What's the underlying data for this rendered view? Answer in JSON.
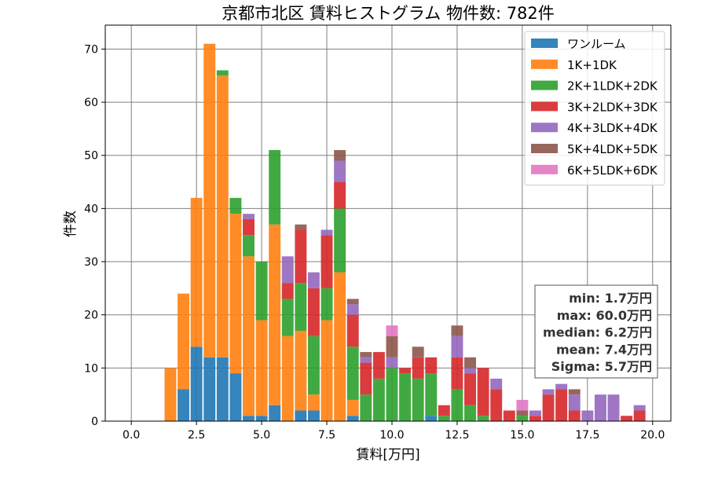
{
  "chart_data": {
    "type": "bar",
    "stacked": true,
    "title": "京都市北区 賃料ヒストグラム 物件数: 782件",
    "xlabel": "賃料[万円]",
    "ylabel": "件数",
    "xlim": [
      -1.0,
      20.7
    ],
    "ylim": [
      0,
      74.5
    ],
    "xticks": [
      0.0,
      2.5,
      5.0,
      7.5,
      10.0,
      12.5,
      15.0,
      17.5,
      20.0
    ],
    "xtick_labels": [
      "0.0",
      "2.5",
      "5.0",
      "7.5",
      "10.0",
      "12.5",
      "15.0",
      "17.5",
      "20.0"
    ],
    "yticks": [
      0,
      10,
      20,
      30,
      40,
      50,
      60,
      70
    ],
    "ytick_labels": [
      "0",
      "10",
      "20",
      "30",
      "40",
      "50",
      "60",
      "70"
    ],
    "grid": true,
    "legend_position": "top-right",
    "bin_width": 0.5,
    "x": [
      1.5,
      2.0,
      2.5,
      3.0,
      3.5,
      4.0,
      4.5,
      5.0,
      5.5,
      6.0,
      6.5,
      7.0,
      7.5,
      8.0,
      8.5,
      9.0,
      9.5,
      10.0,
      10.5,
      11.0,
      11.5,
      12.0,
      12.5,
      13.0,
      13.5,
      14.0,
      14.5,
      15.0,
      15.5,
      16.0,
      16.5,
      17.0,
      17.5,
      18.0,
      18.5,
      19.0,
      19.5
    ],
    "series": [
      {
        "name": "ワンルーム",
        "color": "#1f77b4",
        "values": [
          0,
          6,
          14,
          12,
          12,
          9,
          1,
          1,
          3,
          0,
          2,
          2,
          0,
          0,
          1,
          0,
          0,
          0,
          0,
          0,
          1,
          0,
          0,
          0,
          0,
          0,
          0,
          0,
          0,
          0,
          0,
          0,
          0,
          0,
          0,
          0,
          0
        ]
      },
      {
        "name": "1K+1DK",
        "color": "#ff7f0e",
        "values": [
          10,
          18,
          28,
          59,
          53,
          30,
          30,
          18,
          34,
          16,
          15,
          3,
          19,
          28,
          3,
          0,
          0,
          0,
          0,
          0,
          0,
          0,
          0,
          0,
          0,
          0,
          0,
          0,
          0,
          0,
          0,
          0,
          0,
          0,
          0,
          0,
          0
        ]
      },
      {
        "name": "2K+1LDK+2DK",
        "color": "#2ca02c",
        "values": [
          0,
          0,
          0,
          0,
          1,
          3,
          4,
          11,
          14,
          7,
          9,
          11,
          6,
          12,
          10,
          5,
          8,
          10,
          9,
          8,
          8,
          1,
          6,
          3,
          1,
          0,
          0,
          1,
          0,
          0,
          0,
          0,
          0,
          0,
          0,
          0,
          0
        ]
      },
      {
        "name": "3K+2LDK+3DK",
        "color": "#d62728",
        "values": [
          0,
          0,
          0,
          0,
          0,
          0,
          3,
          0,
          0,
          3,
          10,
          9,
          10,
          5,
          6,
          6,
          5,
          0,
          1,
          4,
          3,
          2,
          6,
          6,
          9,
          6,
          2,
          0,
          1,
          5,
          6,
          2,
          0,
          0,
          0,
          1,
          2
        ]
      },
      {
        "name": "4K+3LDK+4DK",
        "color": "#9467bd",
        "values": [
          0,
          0,
          0,
          0,
          0,
          0,
          1,
          0,
          0,
          5,
          0,
          3,
          1,
          4,
          2,
          1,
          0,
          2,
          0,
          0,
          0,
          0,
          4,
          1,
          0,
          2,
          0,
          0,
          1,
          1,
          1,
          3,
          2,
          5,
          5,
          0,
          1
        ]
      },
      {
        "name": "5K+4LDK+5DK",
        "color": "#8c564b",
        "values": [
          0,
          0,
          0,
          0,
          0,
          0,
          0,
          0,
          0,
          0,
          1,
          0,
          0,
          2,
          1,
          1,
          0,
          4,
          0,
          2,
          0,
          0,
          2,
          2,
          0,
          0,
          0,
          1,
          0,
          0,
          0,
          1,
          0,
          0,
          0,
          0,
          0
        ]
      },
      {
        "name": "6K+5LDK+6DK",
        "color": "#e377c2",
        "values": [
          0,
          0,
          0,
          0,
          0,
          0,
          0,
          0,
          0,
          0,
          0,
          0,
          0,
          0,
          0,
          0,
          0,
          2,
          0,
          0,
          0,
          0,
          0,
          0,
          0,
          0,
          0,
          2,
          0,
          0,
          0,
          0,
          0,
          0,
          0,
          0,
          0
        ]
      }
    ],
    "annotations": [
      "min: 1.7万円",
      "max: 60.0万円",
      "median: 6.2万円",
      "mean: 7.4万円",
      "Sigma: 5.7万円"
    ]
  }
}
